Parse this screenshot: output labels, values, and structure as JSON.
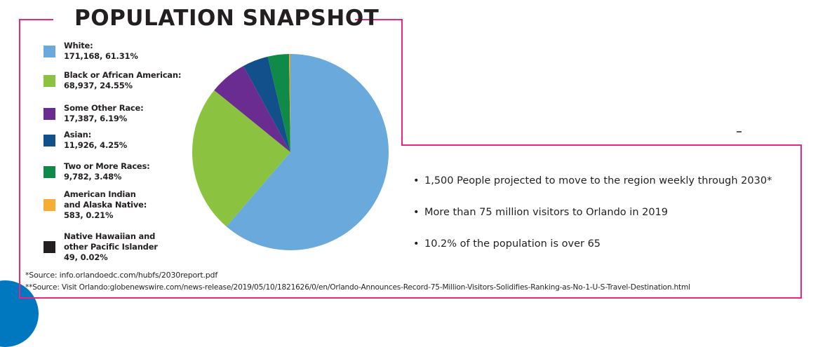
{
  "title": "POPULATION SNAPSHOT",
  "colors": {
    "frame": "#e6267f",
    "accent_blob": "#0078bf"
  },
  "chart_data": {
    "type": "pie",
    "title": "POPULATION SNAPSHOT",
    "start": "top",
    "direction": "clockwise",
    "legend_placement": "left",
    "slices": [
      {
        "label": "White:",
        "count": "171,168",
        "percent": "61.31%",
        "value": 61.31,
        "color": "#6aa9dc"
      },
      {
        "label": "Black or African American:",
        "count": "68,937",
        "percent": "24.55%",
        "value": 24.55,
        "color": "#8bc341"
      },
      {
        "label": "Some Other Race:",
        "count": "17,387",
        "percent": "6.19%",
        "value": 6.19,
        "color": "#6a2c91"
      },
      {
        "label": "Asian:",
        "count": "11,926",
        "percent": "4.25%",
        "value": 4.25,
        "color": "#12508c"
      },
      {
        "label": "Two or More Races:",
        "count": "9,782",
        "percent": "3.48%",
        "value": 3.48,
        "color": "#0f8a48"
      },
      {
        "label": "American Indian and Alaska Native:",
        "label_lines": [
          "American Indian",
          "and Alaska Native:"
        ],
        "count": "583",
        "percent": "0.21%",
        "value": 0.21,
        "color": "#f7ac33"
      },
      {
        "label": "Native Hawaiian and other Pacific Islander",
        "label_lines": [
          "Native Hawaiian and",
          "other Pacific Islander"
        ],
        "count": "49",
        "percent": "0.02%",
        "value": 0.02,
        "color": "#231f20"
      }
    ]
  },
  "bullets": [
    "1,500 People projected to move to the region weekly through 2030*",
    "More than 75 million visitors to Orlando in 2019",
    "10.2% of the population is over 65"
  ],
  "bullet_char": "•",
  "sources": [
    "*Source: info.orlandoedc.com/hubfs/2030report.pdf",
    "**Source: Visit Orlando:globenewswire.com/news-release/2019/05/10/1821626/0/en/Orlando-Announces-Record-75-Million-Visitors-Solidifies-Ranking-as-No-1-U-S-Travel-Destination.html"
  ]
}
